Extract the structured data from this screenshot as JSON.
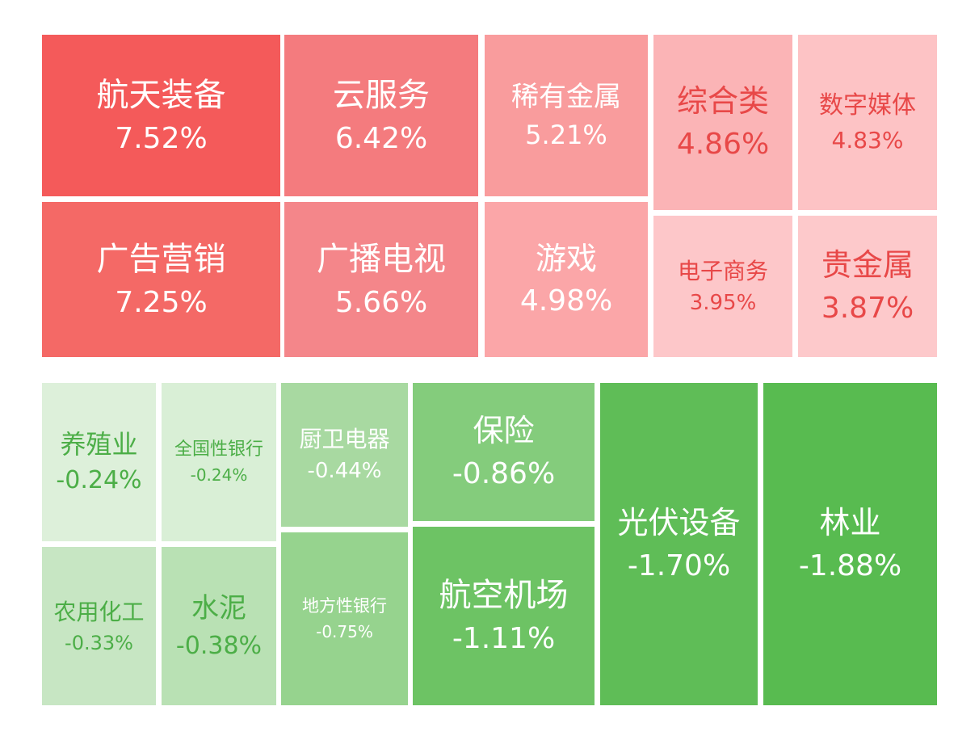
{
  "gainers": [
    {
      "name": "航天装备",
      "change": "7.52%"
    },
    {
      "name": "广告营销",
      "change": "7.25%"
    },
    {
      "name": "云服务",
      "change": "6.42%"
    },
    {
      "name": "广播电视",
      "change": "5.66%"
    },
    {
      "name": "稀有金属",
      "change": "5.21%"
    },
    {
      "name": "游戏",
      "change": "4.98%"
    },
    {
      "name": "综合类",
      "change": "4.86%"
    },
    {
      "name": "电子商务",
      "change": "3.95%"
    },
    {
      "name": "数字媒体",
      "change": "4.83%"
    },
    {
      "name": "贵金属",
      "change": "3.87%"
    }
  ],
  "losers": [
    {
      "name": "养殖业",
      "change": "-0.24%"
    },
    {
      "name": "农用化工",
      "change": "-0.33%"
    },
    {
      "name": "全国性银行",
      "change": "-0.24%"
    },
    {
      "name": "水泥",
      "change": "-0.38%"
    },
    {
      "name": "厨卫电器",
      "change": "-0.44%"
    },
    {
      "name": "地方性银行",
      "change": "-0.75%"
    },
    {
      "name": "保险",
      "change": "-0.86%"
    },
    {
      "name": "航空机场",
      "change": "-1.11%"
    },
    {
      "name": "光伏设备",
      "change": "-1.70%"
    },
    {
      "name": "林业",
      "change": "-1.88%"
    }
  ]
}
